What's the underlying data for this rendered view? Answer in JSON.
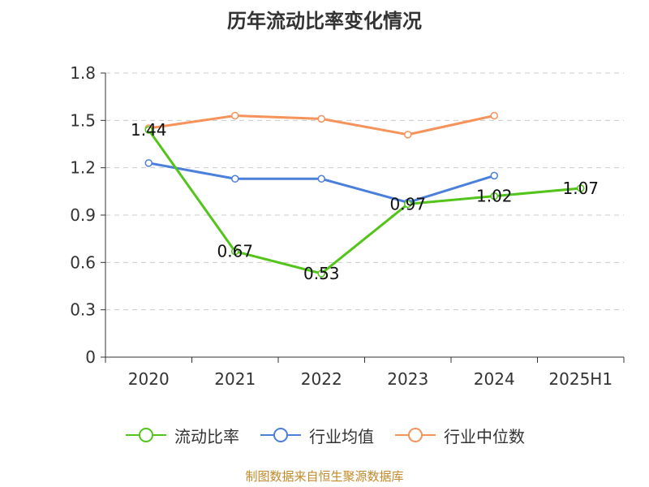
{
  "chart_title": "历年流动比率变化情况",
  "source_text": "制图数据来自恒生聚源数据库",
  "chart_data": {
    "type": "line",
    "title": "历年流动比率变化情况",
    "categories": [
      "2020",
      "2021",
      "2022",
      "2023",
      "2024",
      "2025H1"
    ],
    "ylim": [
      0,
      1.8
    ],
    "yticks": [
      "0",
      "0.3",
      "0.6",
      "0.9",
      "1.2",
      "1.5",
      "1.8"
    ],
    "grid": true,
    "legend_position": "bottom",
    "series": [
      {
        "name": "流动比率",
        "color": "#52c41a",
        "values": [
          1.44,
          0.67,
          0.53,
          0.97,
          1.02,
          1.07
        ],
        "labels": [
          "1.44",
          "0.67",
          "0.53",
          "0.97",
          "1.02",
          "1.07"
        ]
      },
      {
        "name": "行业均值",
        "color": "#4a7fdc",
        "values": [
          1.23,
          1.13,
          1.13,
          0.98,
          1.15,
          null
        ]
      },
      {
        "name": "行业中位数",
        "color": "#f5935a",
        "values": [
          1.45,
          1.53,
          1.51,
          1.41,
          1.53,
          null
        ]
      }
    ]
  }
}
